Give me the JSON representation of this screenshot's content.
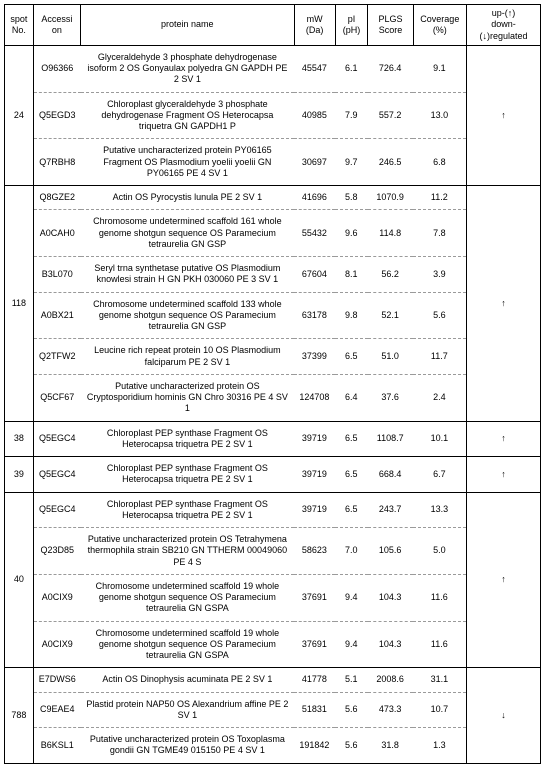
{
  "headers": {
    "spot": "spot\nNo.",
    "acc": "Accessi\non",
    "name": "protein name",
    "mw": "mW\n(Da)",
    "pi": "pI\n(pH)",
    "plgs": "PLGS\nScore",
    "cov": "Coverage\n(%)",
    "reg": "up-(↑)\ndown-(↓)regulated"
  },
  "groups": [
    {
      "spot": "24",
      "reg": "↑",
      "rows": [
        {
          "acc": "O96366",
          "name": "Glyceraldehyde 3 phosphate   dehydrogenase isoform 2 OS Gonyaulax polyedra GN GAPDH PE 2 SV 1",
          "mw": "45547",
          "pi": "6.1",
          "plgs": "726.4",
          "cov": "9.1"
        },
        {
          "acc": "Q5EGD3",
          "name": "Chloroplast glyceraldehyde 3   phosphate dehydrogenase Fragment OS Heterocapsa triquetra GN GAPDH1 P",
          "mw": "40985",
          "pi": "7.9",
          "plgs": "557.2",
          "cov": "13.0"
        },
        {
          "acc": "Q7RBH8",
          "name": "Putative uncharacterized protein  PY06165 Fragment OS Plasmodium yoelii yoelii GN PY06165 PE 4 SV 1",
          "mw": "30697",
          "pi": "9.7",
          "plgs": "246.5",
          "cov": "6.8"
        }
      ]
    },
    {
      "spot": "118",
      "reg": "↑",
      "rows": [
        {
          "acc": "Q8GZE2",
          "name": "Actin OS Pyrocystis   lunula PE 2 SV 1",
          "mw": "41696",
          "pi": "5.8",
          "plgs": "1070.9",
          "cov": "11.2"
        },
        {
          "acc": "A0CAH0",
          "name": "Chromosome undetermined scaffold 161  whole genome shotgun sequence OS Paramecium tetraurelia GN GSP",
          "mw": "55432",
          "pi": "9.6",
          "plgs": "114.8",
          "cov": "7.8"
        },
        {
          "acc": "B3L070",
          "name": "Seryl trna synthetase putative OS   Plasmodium knowlesi strain H GN PKH 030060 PE 3 SV 1",
          "mw": "67604",
          "pi": "8.1",
          "plgs": "56.2",
          "cov": "3.9"
        },
        {
          "acc": "A0BX21",
          "name": "Chromosome undetermined scaffold 133  whole genome shotgun sequence OS Paramecium tetraurelia GN GSP",
          "mw": "63178",
          "pi": "9.8",
          "plgs": "52.1",
          "cov": "5.6"
        },
        {
          "acc": "Q2TFW2",
          "name": "Leucine rich repeat protein 10 OS   Plasmodium falciparum PE 2 SV 1",
          "mw": "37399",
          "pi": "6.5",
          "plgs": "51.0",
          "cov": "11.7"
        },
        {
          "acc": "Q5CF67",
          "name": "Putative uncharacterized protein OS   Cryptosporidium hominis GN Chro 30316 PE 4 SV 1",
          "mw": "124708",
          "pi": "6.4",
          "plgs": "37.6",
          "cov": "2.4"
        }
      ]
    },
    {
      "spot": "38",
      "reg": "↑",
      "rows": [
        {
          "acc": "Q5EGC4",
          "name": "Chloroplast PEP   synthase Fragment OS Heterocapsa triquetra PE 2 SV 1",
          "mw": "39719",
          "pi": "6.5",
          "plgs": "1108.7",
          "cov": "10.1"
        }
      ]
    },
    {
      "spot": "39",
      "reg": "↑",
      "rows": [
        {
          "acc": "Q5EGC4",
          "name": "Chloroplast PEP   synthase Fragment OS Heterocapsa triquetra PE 2 SV 1",
          "mw": "39719",
          "pi": "6.5",
          "plgs": "668.4",
          "cov": "6.7"
        }
      ]
    },
    {
      "spot": "40",
      "reg": "↑",
      "rows": [
        {
          "acc": "Q5EGC4",
          "name": "Chloroplast PEP   synthase Fragment OS Heterocapsa triquetra PE 2 SV 1",
          "mw": "39719",
          "pi": "6.5",
          "plgs": "243.7",
          "cov": "13.3"
        },
        {
          "acc": "Q23D85",
          "name": "Putative uncharacterized protein OS  Tetrahymena thermophila strain SB210 GN TTHERM 00049060 PE 4 S",
          "mw": "58623",
          "pi": "7.0",
          "plgs": "105.6",
          "cov": "5.0"
        },
        {
          "acc": "A0CIX9",
          "name": "Chromosome undetermined scaffold 19   whole genome shotgun sequence OS Paramecium tetraurelia GN GSPA",
          "mw": "37691",
          "pi": "9.4",
          "plgs": "104.3",
          "cov": "11.6"
        },
        {
          "acc": "A0CIX9",
          "name": "Chromosome   undetermined   scaffold   19    whole genome    shotgun   sequence   OS   Paramecium tetraurelia GN GSPA",
          "mw": "37691",
          "pi": "9.4",
          "plgs": "104.3",
          "cov": "11.6"
        }
      ]
    },
    {
      "spot": "788",
      "reg": "↓",
      "rows": [
        {
          "acc": "E7DWS6",
          "name": "Actin OS Dinophysis   acuminata PE 2 SV 1",
          "mw": "41778",
          "pi": "5.1",
          "plgs": "2008.6",
          "cov": "31.1"
        },
        {
          "acc": "C9EAE4",
          "name": "Plastid protein NAP50 OS Alexandrium   affine PE 2 SV 1",
          "mw": "51831",
          "pi": "5.6",
          "plgs": "473.3",
          "cov": "10.7"
        },
        {
          "acc": "B6KSL1",
          "name": "Putative  uncharacterized  protein  OS    Toxoplasma gondii GN TGME49 015150 PE 4 SV 1",
          "mw": "191842",
          "pi": "5.6",
          "plgs": "31.8",
          "cov": "1.3"
        }
      ]
    }
  ]
}
